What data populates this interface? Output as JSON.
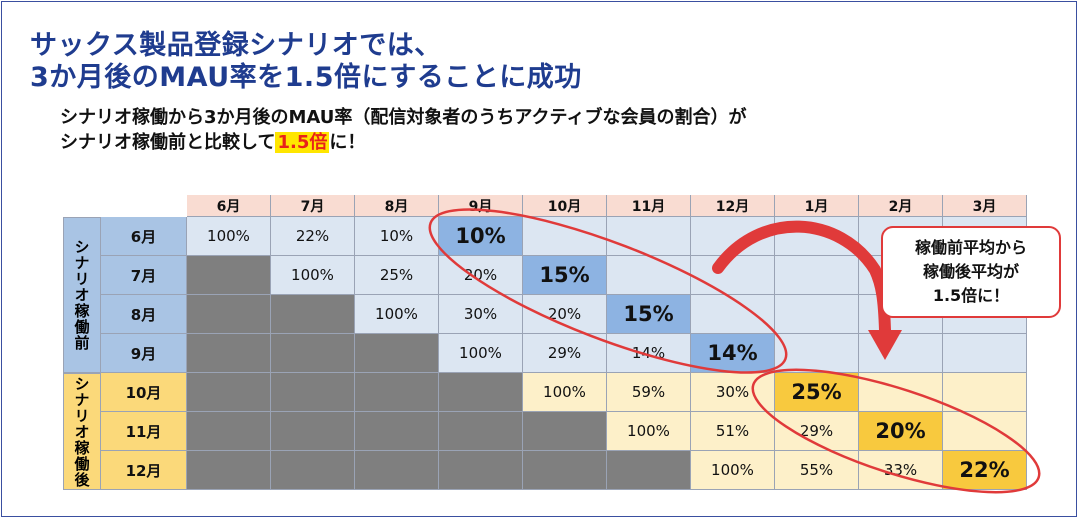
{
  "heading": {
    "line1": "サックス製品登録シナリオでは、",
    "line2": "3か月後のMAU率を1.5倍にすることに成功"
  },
  "subtitle": {
    "line1": "シナリオ稼働から3か月後のMAU率（配信対象者のうちアクティブな会員の割合）が",
    "line2_pre": "シナリオ稼働前と比較して",
    "line2_highlight": "1.5倍",
    "line2_post": "に！"
  },
  "table": {
    "columns": [
      "6月",
      "7月",
      "8月",
      "9月",
      "10月",
      "11月",
      "12月",
      "1月",
      "2月",
      "3月"
    ],
    "groups": [
      {
        "label": "シナリオ稼働前",
        "type": "before"
      },
      {
        "label": "シナリオ稼働後",
        "type": "after"
      }
    ],
    "rows": [
      {
        "label": "6月",
        "group": "before",
        "cells": [
          "100%",
          "22%",
          "10%",
          "10%",
          "",
          "",
          "",
          "",
          "",
          ""
        ],
        "highlight": 3,
        "gray_until": 0
      },
      {
        "label": "7月",
        "group": "before",
        "cells": [
          "",
          "100%",
          "25%",
          "20%",
          "15%",
          "",
          "",
          "",
          "",
          ""
        ],
        "highlight": 4,
        "gray_until": 1
      },
      {
        "label": "8月",
        "group": "before",
        "cells": [
          "",
          "",
          "100%",
          "30%",
          "20%",
          "15%",
          "",
          "",
          "",
          ""
        ],
        "highlight": 5,
        "gray_until": 2
      },
      {
        "label": "9月",
        "group": "before",
        "cells": [
          "",
          "",
          "",
          "100%",
          "29%",
          "14%",
          "14%",
          "",
          "",
          ""
        ],
        "highlight": 6,
        "gray_until": 3
      },
      {
        "label": "10月",
        "group": "after",
        "cells": [
          "",
          "",
          "",
          "",
          "100%",
          "59%",
          "30%",
          "25%",
          "",
          ""
        ],
        "highlight": 7,
        "gray_until": 4
      },
      {
        "label": "11月",
        "group": "after",
        "cells": [
          "",
          "",
          "",
          "",
          "",
          "100%",
          "51%",
          "29%",
          "20%",
          ""
        ],
        "highlight": 8,
        "gray_until": 5
      },
      {
        "label": "12月",
        "group": "after",
        "cells": [
          "",
          "",
          "",
          "",
          "",
          "",
          "100%",
          "55%",
          "33%",
          "22%"
        ],
        "highlight": 9,
        "gray_until": 6
      }
    ]
  },
  "callout": {
    "line1": "稼働前平均から",
    "line2": "稼働後平均が",
    "line3": "1.5倍に！"
  },
  "colors": {
    "heading": "#1f3c8f",
    "accent_red": "#e03a3a",
    "before_header": "#a9c4e4",
    "after_header": "#fbd97a",
    "highlight_blue": "#8db3e2",
    "highlight_yellow": "#f8c93e",
    "gray_cell": "#7f7f7f"
  }
}
